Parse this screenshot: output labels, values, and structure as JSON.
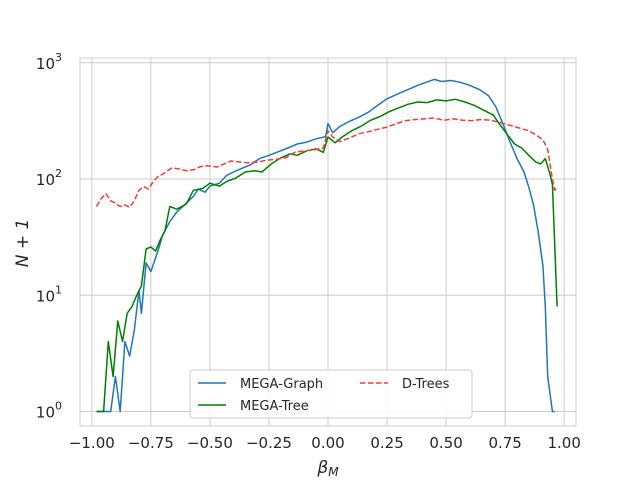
{
  "chart_data": {
    "type": "line",
    "title": "",
    "xlabel": "β_M",
    "ylabel": "N + 1",
    "xlim": [
      -1.05,
      1.05
    ],
    "ylim": [
      0.75,
      1100
    ],
    "yscale": "log",
    "grid": true,
    "legend_placement": "lower-center",
    "legend_columns": 2,
    "x_ticks": [
      -1.0,
      -0.75,
      -0.5,
      -0.25,
      0.0,
      0.25,
      0.5,
      0.75,
      1.0
    ],
    "x_tick_labels": [
      "−1.00",
      "−0.75",
      "−0.50",
      "−0.25",
      "0.00",
      "0.25",
      "0.50",
      "0.75",
      "1.00"
    ],
    "y_ticks": [
      1,
      10,
      100,
      1000
    ],
    "y_tick_labels": [
      {
        "base": "10",
        "exp": "0"
      },
      {
        "base": "10",
        "exp": "1"
      },
      {
        "base": "10",
        "exp": "2"
      },
      {
        "base": "10",
        "exp": "3"
      }
    ],
    "series": [
      {
        "name": "MEGA-Graph",
        "color": "#1f77b4",
        "dash": "solid",
        "points": [
          [
            -0.98,
            1
          ],
          [
            -0.95,
            1
          ],
          [
            -0.92,
            1
          ],
          [
            -0.9,
            2
          ],
          [
            -0.88,
            1
          ],
          [
            -0.86,
            4
          ],
          [
            -0.84,
            3
          ],
          [
            -0.82,
            5
          ],
          [
            -0.8,
            11
          ],
          [
            -0.79,
            7
          ],
          [
            -0.77,
            19
          ],
          [
            -0.75,
            16
          ],
          [
            -0.72,
            24
          ],
          [
            -0.7,
            33
          ],
          [
            -0.67,
            43
          ],
          [
            -0.64,
            52
          ],
          [
            -0.6,
            62
          ],
          [
            -0.57,
            71
          ],
          [
            -0.55,
            82
          ],
          [
            -0.52,
            77
          ],
          [
            -0.5,
            87
          ],
          [
            -0.46,
            92
          ],
          [
            -0.43,
            107
          ],
          [
            -0.4,
            115
          ],
          [
            -0.36,
            125
          ],
          [
            -0.33,
            132
          ],
          [
            -0.29,
            150
          ],
          [
            -0.25,
            160
          ],
          [
            -0.21,
            172
          ],
          [
            -0.17,
            185
          ],
          [
            -0.13,
            200
          ],
          [
            -0.09,
            208
          ],
          [
            -0.05,
            222
          ],
          [
            -0.01,
            232
          ],
          [
            0.0,
            300
          ],
          [
            0.02,
            250
          ],
          [
            0.05,
            283
          ],
          [
            0.09,
            313
          ],
          [
            0.13,
            340
          ],
          [
            0.17,
            375
          ],
          [
            0.21,
            430
          ],
          [
            0.25,
            490
          ],
          [
            0.3,
            545
          ],
          [
            0.34,
            590
          ],
          [
            0.38,
            640
          ],
          [
            0.42,
            685
          ],
          [
            0.45,
            720
          ],
          [
            0.48,
            690
          ],
          [
            0.52,
            705
          ],
          [
            0.56,
            680
          ],
          [
            0.6,
            640
          ],
          [
            0.64,
            590
          ],
          [
            0.68,
            520
          ],
          [
            0.71,
            420
          ],
          [
            0.74,
            300
          ],
          [
            0.77,
            210
          ],
          [
            0.8,
            150
          ],
          [
            0.83,
            115
          ],
          [
            0.85,
            85
          ],
          [
            0.87,
            60
          ],
          [
            0.89,
            35
          ],
          [
            0.91,
            18
          ],
          [
            0.92,
            8
          ],
          [
            0.93,
            2
          ],
          [
            0.95,
            1
          ],
          [
            0.96,
            1
          ]
        ]
      },
      {
        "name": "MEGA-Tree",
        "color": "#008000",
        "dash": "solid",
        "points": [
          [
            -0.98,
            1
          ],
          [
            -0.95,
            1
          ],
          [
            -0.93,
            4
          ],
          [
            -0.91,
            2
          ],
          [
            -0.89,
            6
          ],
          [
            -0.87,
            4
          ],
          [
            -0.85,
            7
          ],
          [
            -0.83,
            8
          ],
          [
            -0.81,
            10
          ],
          [
            -0.79,
            12
          ],
          [
            -0.77,
            25
          ],
          [
            -0.75,
            26
          ],
          [
            -0.73,
            24
          ],
          [
            -0.71,
            30
          ],
          [
            -0.69,
            36
          ],
          [
            -0.67,
            58
          ],
          [
            -0.64,
            55
          ],
          [
            -0.6,
            61
          ],
          [
            -0.57,
            80
          ],
          [
            -0.53,
            83
          ],
          [
            -0.5,
            92
          ],
          [
            -0.46,
            87
          ],
          [
            -0.43,
            95
          ],
          [
            -0.39,
            102
          ],
          [
            -0.35,
            115
          ],
          [
            -0.31,
            118
          ],
          [
            -0.28,
            115
          ],
          [
            -0.24,
            135
          ],
          [
            -0.2,
            152
          ],
          [
            -0.16,
            165
          ],
          [
            -0.13,
            160
          ],
          [
            -0.09,
            175
          ],
          [
            -0.05,
            182
          ],
          [
            -0.02,
            170
          ],
          [
            0.0,
            230
          ],
          [
            0.03,
            205
          ],
          [
            0.06,
            230
          ],
          [
            0.1,
            260
          ],
          [
            0.14,
            285
          ],
          [
            0.18,
            320
          ],
          [
            0.22,
            345
          ],
          [
            0.26,
            380
          ],
          [
            0.3,
            410
          ],
          [
            0.34,
            440
          ],
          [
            0.38,
            460
          ],
          [
            0.42,
            455
          ],
          [
            0.46,
            480
          ],
          [
            0.5,
            470
          ],
          [
            0.54,
            485
          ],
          [
            0.58,
            460
          ],
          [
            0.62,
            430
          ],
          [
            0.66,
            390
          ],
          [
            0.7,
            355
          ],
          [
            0.73,
            290
          ],
          [
            0.76,
            240
          ],
          [
            0.79,
            200
          ],
          [
            0.82,
            185
          ],
          [
            0.85,
            160
          ],
          [
            0.88,
            140
          ],
          [
            0.9,
            135
          ],
          [
            0.92,
            150
          ],
          [
            0.94,
            110
          ],
          [
            0.95,
            90
          ],
          [
            0.97,
            8
          ]
        ]
      },
      {
        "name": "D-Trees",
        "color": "#f03c3c",
        "dash": "dashed",
        "points": [
          [
            -0.98,
            58
          ],
          [
            -0.96,
            68
          ],
          [
            -0.94,
            75
          ],
          [
            -0.92,
            65
          ],
          [
            -0.9,
            62
          ],
          [
            -0.88,
            58
          ],
          [
            -0.86,
            60
          ],
          [
            -0.84,
            57
          ],
          [
            -0.82,
            65
          ],
          [
            -0.8,
            80
          ],
          [
            -0.78,
            86
          ],
          [
            -0.76,
            82
          ],
          [
            -0.74,
            95
          ],
          [
            -0.72,
            105
          ],
          [
            -0.7,
            110
          ],
          [
            -0.68,
            118
          ],
          [
            -0.66,
            125
          ],
          [
            -0.63,
            122
          ],
          [
            -0.6,
            118
          ],
          [
            -0.57,
            120
          ],
          [
            -0.54,
            128
          ],
          [
            -0.51,
            130
          ],
          [
            -0.47,
            127
          ],
          [
            -0.44,
            135
          ],
          [
            -0.41,
            143
          ],
          [
            -0.37,
            140
          ],
          [
            -0.34,
            138
          ],
          [
            -0.3,
            140
          ],
          [
            -0.26,
            145
          ],
          [
            -0.22,
            148
          ],
          [
            -0.18,
            152
          ],
          [
            -0.14,
            170
          ],
          [
            -0.1,
            175
          ],
          [
            -0.06,
            178
          ],
          [
            -0.02,
            185
          ],
          [
            0.0,
            260
          ],
          [
            0.02,
            230
          ],
          [
            0.05,
            210
          ],
          [
            0.09,
            225
          ],
          [
            0.13,
            245
          ],
          [
            0.17,
            255
          ],
          [
            0.21,
            268
          ],
          [
            0.25,
            280
          ],
          [
            0.29,
            300
          ],
          [
            0.33,
            318
          ],
          [
            0.37,
            325
          ],
          [
            0.41,
            330
          ],
          [
            0.45,
            335
          ],
          [
            0.49,
            320
          ],
          [
            0.53,
            330
          ],
          [
            0.57,
            320
          ],
          [
            0.61,
            318
          ],
          [
            0.65,
            325
          ],
          [
            0.69,
            320
          ],
          [
            0.73,
            305
          ],
          [
            0.77,
            290
          ],
          [
            0.81,
            275
          ],
          [
            0.85,
            260
          ],
          [
            0.88,
            240
          ],
          [
            0.91,
            218
          ],
          [
            0.93,
            180
          ],
          [
            0.95,
            100
          ],
          [
            0.96,
            80
          ],
          [
            0.97,
            85
          ]
        ]
      }
    ]
  }
}
